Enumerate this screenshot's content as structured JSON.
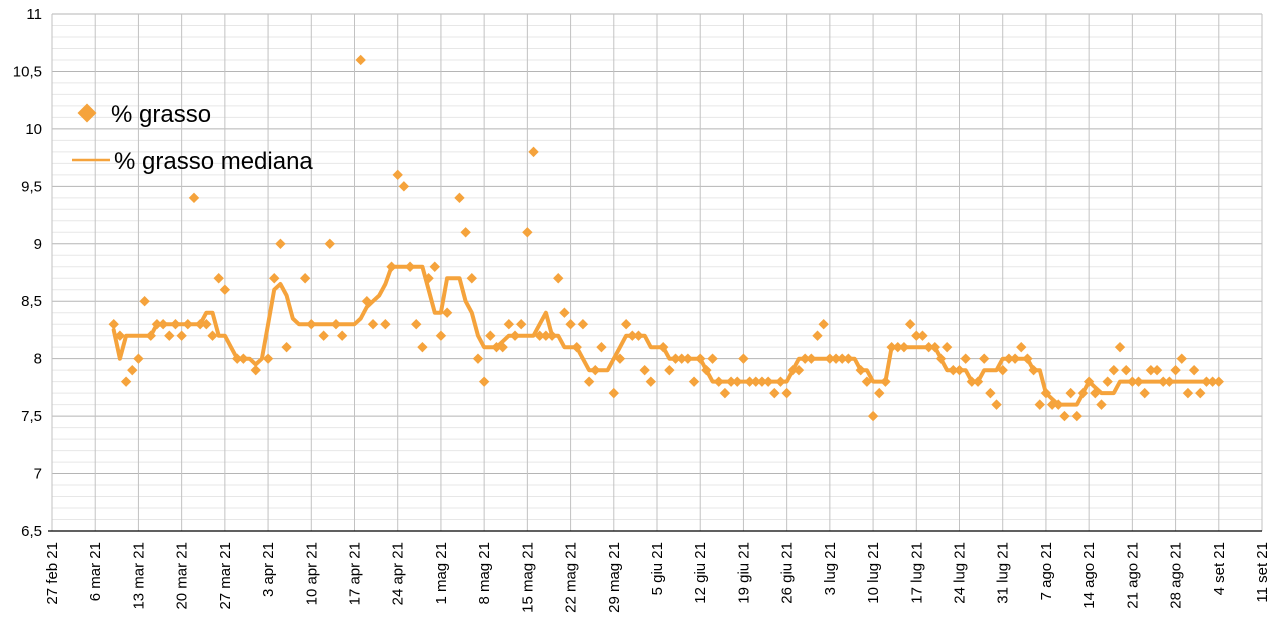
{
  "colors": {
    "series_orange": "#F5A33C",
    "grid_major": "#b5b5b5",
    "grid_minor": "#e7e7e7",
    "grid_vertical": "#c2c2c2",
    "axis_line": "#000000",
    "background": "#ffffff",
    "text": "#000000"
  },
  "legend": {
    "grasso_label": "% grasso",
    "mediana_label": "% grasso mediana"
  },
  "chart_data": {
    "type": "scatter",
    "title": "",
    "xlabel": "",
    "ylabel": "",
    "grid": "on",
    "legend_position": "top-left-inside",
    "y_axis": {
      "min": 6.5,
      "max": 11,
      "major_step": 0.5,
      "minor_step": 0.1,
      "tick_labels": [
        "6,5",
        "7",
        "7,5",
        "8",
        "8,5",
        "9",
        "9,5",
        "10",
        "10,5",
        "11"
      ]
    },
    "x_axis": {
      "tick_labels": [
        "27 feb 21",
        "6 mar 21",
        "13 mar 21",
        "20 mar 21",
        "27 mar 21",
        "3 apr 21",
        "10 apr 21",
        "17 apr 21",
        "24 apr 21",
        "1 mag 21",
        "8 mag 21",
        "15 mag 21",
        "22 mag 21",
        "29 mag 21",
        "5 giu 21",
        "12 giu 21",
        "19 giu 21",
        "26 giu 21",
        "3 lug 21",
        "10 lug 21",
        "17 lug 21",
        "24 lug 21",
        "31 lug 21",
        "7 ago 21",
        "14 ago 21",
        "21 ago 21",
        "28 ago 21",
        "4 set 21",
        "11 set 21"
      ],
      "tick_day_offsets": [
        0,
        7,
        14,
        21,
        28,
        35,
        42,
        49,
        56,
        63,
        70,
        77,
        84,
        91,
        98,
        105,
        112,
        119,
        126,
        133,
        140,
        147,
        154,
        161,
        168,
        175,
        182,
        189,
        196
      ]
    },
    "series": [
      {
        "name": "% grasso",
        "type": "scatter",
        "marker": "diamond",
        "color": "#F5A33C"
      },
      {
        "name": "% grasso mediana",
        "type": "line",
        "color": "#F5A33C"
      }
    ],
    "columns": [
      "date",
      "day_offset_from_27_feb_21",
      "grasso_pct",
      "grasso_mediana_pct"
    ],
    "points": [
      [
        "9 mar 21",
        10,
        8.3,
        8.25
      ],
      [
        "10 mar 21",
        11,
        8.2,
        8.0
      ],
      [
        "11 mar 21",
        12,
        7.8,
        8.2
      ],
      [
        "12 mar 21",
        13,
        7.9,
        8.2
      ],
      [
        "13 mar 21",
        14,
        8.0,
        8.2
      ],
      [
        "14 mar 21",
        15,
        8.5,
        8.2
      ],
      [
        "15 mar 21",
        16,
        8.2,
        8.2
      ],
      [
        "16 mar 21",
        17,
        8.3,
        8.3
      ],
      [
        "17 mar 21",
        18,
        8.3,
        8.3
      ],
      [
        "18 mar 21",
        19,
        8.2,
        8.3
      ],
      [
        "19 mar 21",
        20,
        8.3,
        8.3
      ],
      [
        "20 mar 21",
        21,
        8.2,
        8.3
      ],
      [
        "21 mar 21",
        22,
        8.3,
        8.3
      ],
      [
        "22 mar 21",
        23,
        9.4,
        8.3
      ],
      [
        "23 mar 21",
        24,
        8.3,
        8.3
      ],
      [
        "24 mar 21",
        25,
        8.3,
        8.4
      ],
      [
        "25 mar 21",
        26,
        8.2,
        8.4
      ],
      [
        "26 mar 21",
        27,
        8.7,
        8.2
      ],
      [
        "27 mar 21",
        28,
        8.6,
        8.2
      ],
      [
        "28 mar 21",
        29,
        null,
        8.1
      ],
      [
        "29 mar 21",
        30,
        8.0,
        8.0
      ],
      [
        "30 mar 21",
        31,
        8.0,
        8.0
      ],
      [
        "31 mar 21",
        32,
        null,
        8.0
      ],
      [
        "1 apr 21",
        33,
        7.9,
        7.95
      ],
      [
        "2 apr 21",
        34,
        null,
        8.0
      ],
      [
        "3 apr 21",
        35,
        8.0,
        8.3
      ],
      [
        "4 apr 21",
        36,
        8.7,
        8.6
      ],
      [
        "5 apr 21",
        37,
        9.0,
        8.65
      ],
      [
        "6 apr 21",
        38,
        8.1,
        8.55
      ],
      [
        "7 apr 21",
        39,
        null,
        8.35
      ],
      [
        "8 apr 21",
        40,
        null,
        8.3
      ],
      [
        "9 apr 21",
        41,
        8.7,
        8.3
      ],
      [
        "10 apr 21",
        42,
        8.3,
        8.3
      ],
      [
        "11 apr 21",
        43,
        null,
        8.3
      ],
      [
        "12 apr 21",
        44,
        8.2,
        8.3
      ],
      [
        "13 apr 21",
        45,
        9.0,
        8.3
      ],
      [
        "14 apr 21",
        46,
        8.3,
        8.3
      ],
      [
        "15 apr 21",
        47,
        8.2,
        8.3
      ],
      [
        "16 apr 21",
        48,
        null,
        8.3
      ],
      [
        "17 apr 21",
        49,
        null,
        8.3
      ],
      [
        "18 apr 21",
        50,
        10.6,
        8.35
      ],
      [
        "19 apr 21",
        51,
        8.5,
        8.45
      ],
      [
        "20 apr 21",
        52,
        8.3,
        8.5
      ],
      [
        "21 apr 21",
        53,
        null,
        8.55
      ],
      [
        "22 apr 21",
        54,
        8.3,
        8.65
      ],
      [
        "23 apr 21",
        55,
        8.8,
        8.8
      ],
      [
        "24 apr 21",
        56,
        9.6,
        8.8
      ],
      [
        "25 apr 21",
        57,
        9.5,
        8.8
      ],
      [
        "26 apr 21",
        58,
        8.8,
        8.8
      ],
      [
        "27 apr 21",
        59,
        8.3,
        8.8
      ],
      [
        "28 apr 21",
        60,
        8.1,
        8.8
      ],
      [
        "29 apr 21",
        61,
        8.7,
        8.6
      ],
      [
        "30 apr 21",
        62,
        8.8,
        8.4
      ],
      [
        "1 mag 21",
        63,
        8.2,
        8.4
      ],
      [
        "2 mag 21",
        64,
        8.4,
        8.7
      ],
      [
        "3 mag 21",
        65,
        null,
        8.7
      ],
      [
        "4 mag 21",
        66,
        9.4,
        8.7
      ],
      [
        "5 mag 21",
        67,
        9.1,
        8.5
      ],
      [
        "6 mag 21",
        68,
        8.7,
        8.4
      ],
      [
        "7 mag 21",
        69,
        8.0,
        8.2
      ],
      [
        "8 mag 21",
        70,
        7.8,
        8.1
      ],
      [
        "9 mag 21",
        71,
        8.2,
        8.1
      ],
      [
        "10 mag 21",
        72,
        8.1,
        8.1
      ],
      [
        "11 mag 21",
        73,
        8.1,
        8.15
      ],
      [
        "12 mag 21",
        74,
        8.3,
        8.2
      ],
      [
        "13 mag 21",
        75,
        8.2,
        8.2
      ],
      [
        "14 mag 21",
        76,
        8.3,
        8.2
      ],
      [
        "15 mag 21",
        77,
        9.1,
        8.2
      ],
      [
        "16 mag 21",
        78,
        9.8,
        8.2
      ],
      [
        "17 mag 21",
        79,
        8.2,
        8.3
      ],
      [
        "18 mag 21",
        80,
        8.2,
        8.4
      ],
      [
        "19 mag 21",
        81,
        8.2,
        8.2
      ],
      [
        "20 mag 21",
        82,
        8.7,
        8.2
      ],
      [
        "21 mag 21",
        83,
        8.4,
        8.1
      ],
      [
        "22 mag 21",
        84,
        8.3,
        8.1
      ],
      [
        "23 mag 21",
        85,
        8.1,
        8.1
      ],
      [
        "24 mag 21",
        86,
        8.3,
        8.0
      ],
      [
        "25 mag 21",
        87,
        7.8,
        7.9
      ],
      [
        "26 mag 21",
        88,
        7.9,
        7.9
      ],
      [
        "27 mag 21",
        89,
        8.1,
        7.9
      ],
      [
        "28 mag 21",
        90,
        null,
        7.9
      ],
      [
        "29 mag 21",
        91,
        7.7,
        8.0
      ],
      [
        "30 mag 21",
        92,
        8.0,
        8.1
      ],
      [
        "31 mag 21",
        93,
        8.3,
        8.2
      ],
      [
        "1 giu 21",
        94,
        8.2,
        8.2
      ],
      [
        "2 giu 21",
        95,
        8.2,
        8.2
      ],
      [
        "3 giu 21",
        96,
        7.9,
        8.2
      ],
      [
        "4 giu 21",
        97,
        7.8,
        8.1
      ],
      [
        "5 giu 21",
        98,
        null,
        8.1
      ],
      [
        "6 giu 21",
        99,
        8.1,
        8.1
      ],
      [
        "7 giu 21",
        100,
        7.9,
        8.0
      ],
      [
        "8 giu 21",
        101,
        8.0,
        8.0
      ],
      [
        "9 giu 21",
        102,
        8.0,
        8.0
      ],
      [
        "10 giu 21",
        103,
        8.0,
        8.0
      ],
      [
        "11 giu 21",
        104,
        7.8,
        8.0
      ],
      [
        "12 giu 21",
        105,
        8.0,
        8.0
      ],
      [
        "13 giu 21",
        106,
        7.9,
        7.9
      ],
      [
        "14 giu 21",
        107,
        8.0,
        7.8
      ],
      [
        "15 giu 21",
        108,
        7.8,
        7.8
      ],
      [
        "16 giu 21",
        109,
        7.7,
        7.8
      ],
      [
        "17 giu 21",
        110,
        7.8,
        7.8
      ],
      [
        "18 giu 21",
        111,
        7.8,
        7.8
      ],
      [
        "19 giu 21",
        112,
        8.0,
        7.8
      ],
      [
        "20 giu 21",
        113,
        7.8,
        7.8
      ],
      [
        "21 giu 21",
        114,
        7.8,
        7.8
      ],
      [
        "22 giu 21",
        115,
        7.8,
        7.8
      ],
      [
        "23 giu 21",
        116,
        7.8,
        7.8
      ],
      [
        "24 giu 21",
        117,
        7.7,
        7.8
      ],
      [
        "25 giu 21",
        118,
        7.8,
        7.8
      ],
      [
        "26 giu 21",
        119,
        7.7,
        7.8
      ],
      [
        "27 giu 21",
        120,
        7.9,
        7.9
      ],
      [
        "28 giu 21",
        121,
        7.9,
        8.0
      ],
      [
        "29 giu 21",
        122,
        8.0,
        8.0
      ],
      [
        "30 giu 21",
        123,
        8.0,
        8.0
      ],
      [
        "1 lug 21",
        124,
        8.2,
        8.0
      ],
      [
        "2 lug 21",
        125,
        8.3,
        8.0
      ],
      [
        "3 lug 21",
        126,
        8.0,
        8.0
      ],
      [
        "4 lug 21",
        127,
        8.0,
        8.0
      ],
      [
        "5 lug 21",
        128,
        8.0,
        8.0
      ],
      [
        "6 lug 21",
        129,
        8.0,
        8.0
      ],
      [
        "7 lug 21",
        130,
        null,
        8.0
      ],
      [
        "8 lug 21",
        131,
        7.9,
        7.9
      ],
      [
        "9 lug 21",
        132,
        7.8,
        7.9
      ],
      [
        "10 lug 21",
        133,
        7.5,
        7.8
      ],
      [
        "11 lug 21",
        134,
        7.7,
        7.8
      ],
      [
        "12 lug 21",
        135,
        7.8,
        7.8
      ],
      [
        "13 lug 21",
        136,
        8.1,
        8.1
      ],
      [
        "14 lug 21",
        137,
        8.1,
        8.1
      ],
      [
        "15 lug 21",
        138,
        8.1,
        8.1
      ],
      [
        "16 lug 21",
        139,
        8.3,
        8.1
      ],
      [
        "17 lug 21",
        140,
        8.2,
        8.1
      ],
      [
        "18 lug 21",
        141,
        8.2,
        8.1
      ],
      [
        "19 lug 21",
        142,
        8.1,
        8.1
      ],
      [
        "20 lug 21",
        143,
        8.1,
        8.1
      ],
      [
        "21 lug 21",
        144,
        8.0,
        8.0
      ],
      [
        "22 lug 21",
        145,
        8.1,
        7.9
      ],
      [
        "23 lug 21",
        146,
        7.9,
        7.9
      ],
      [
        "24 lug 21",
        147,
        7.9,
        7.9
      ],
      [
        "25 lug 21",
        148,
        8.0,
        7.9
      ],
      [
        "26 lug 21",
        149,
        7.8,
        7.8
      ],
      [
        "27 lug 21",
        150,
        7.8,
        7.8
      ],
      [
        "28 lug 21",
        151,
        8.0,
        7.9
      ],
      [
        "29 lug 21",
        152,
        7.7,
        7.9
      ],
      [
        "30 lug 21",
        153,
        7.6,
        7.9
      ],
      [
        "31 lug 21",
        154,
        7.9,
        8.0
      ],
      [
        "1 ago 21",
        155,
        8.0,
        8.0
      ],
      [
        "2 ago 21",
        156,
        8.0,
        8.0
      ],
      [
        "3 ago 21",
        157,
        8.1,
        8.0
      ],
      [
        "4 ago 21",
        158,
        8.0,
        8.0
      ],
      [
        "5 ago 21",
        159,
        7.9,
        7.9
      ],
      [
        "6 ago 21",
        160,
        7.6,
        7.9
      ],
      [
        "7 ago 21",
        161,
        7.7,
        7.7
      ],
      [
        "8 ago 21",
        162,
        7.6,
        7.65
      ],
      [
        "9 ago 21",
        163,
        7.6,
        7.6
      ],
      [
        "10 ago 21",
        164,
        7.5,
        7.6
      ],
      [
        "11 ago 21",
        165,
        7.7,
        7.6
      ],
      [
        "12 ago 21",
        166,
        7.5,
        7.6
      ],
      [
        "13 ago 21",
        167,
        7.7,
        7.7
      ],
      [
        "14 ago 21",
        168,
        7.8,
        7.8
      ],
      [
        "15 ago 21",
        169,
        7.7,
        7.75
      ],
      [
        "16 ago 21",
        170,
        7.6,
        7.7
      ],
      [
        "17 ago 21",
        171,
        7.8,
        7.7
      ],
      [
        "18 ago 21",
        172,
        7.9,
        7.7
      ],
      [
        "19 ago 21",
        173,
        8.1,
        7.8
      ],
      [
        "20 ago 21",
        174,
        7.9,
        7.8
      ],
      [
        "21 ago 21",
        175,
        7.8,
        7.8
      ],
      [
        "22 ago 21",
        176,
        7.8,
        7.8
      ],
      [
        "23 ago 21",
        177,
        7.7,
        7.8
      ],
      [
        "24 ago 21",
        178,
        7.9,
        7.8
      ],
      [
        "25 ago 21",
        179,
        7.9,
        7.8
      ],
      [
        "26 ago 21",
        180,
        7.8,
        7.8
      ],
      [
        "27 ago 21",
        181,
        7.8,
        7.8
      ],
      [
        "28 ago 21",
        182,
        7.9,
        7.8
      ],
      [
        "29 ago 21",
        183,
        8.0,
        7.8
      ],
      [
        "30 ago 21",
        184,
        7.7,
        7.8
      ],
      [
        "31 ago 21",
        185,
        7.9,
        7.8
      ],
      [
        "1 set 21",
        186,
        7.7,
        7.8
      ],
      [
        "2 set 21",
        187,
        7.8,
        7.8
      ],
      [
        "3 set 21",
        188,
        7.8,
        7.8
      ],
      [
        "4 set 21",
        189,
        7.8,
        7.8
      ]
    ]
  }
}
